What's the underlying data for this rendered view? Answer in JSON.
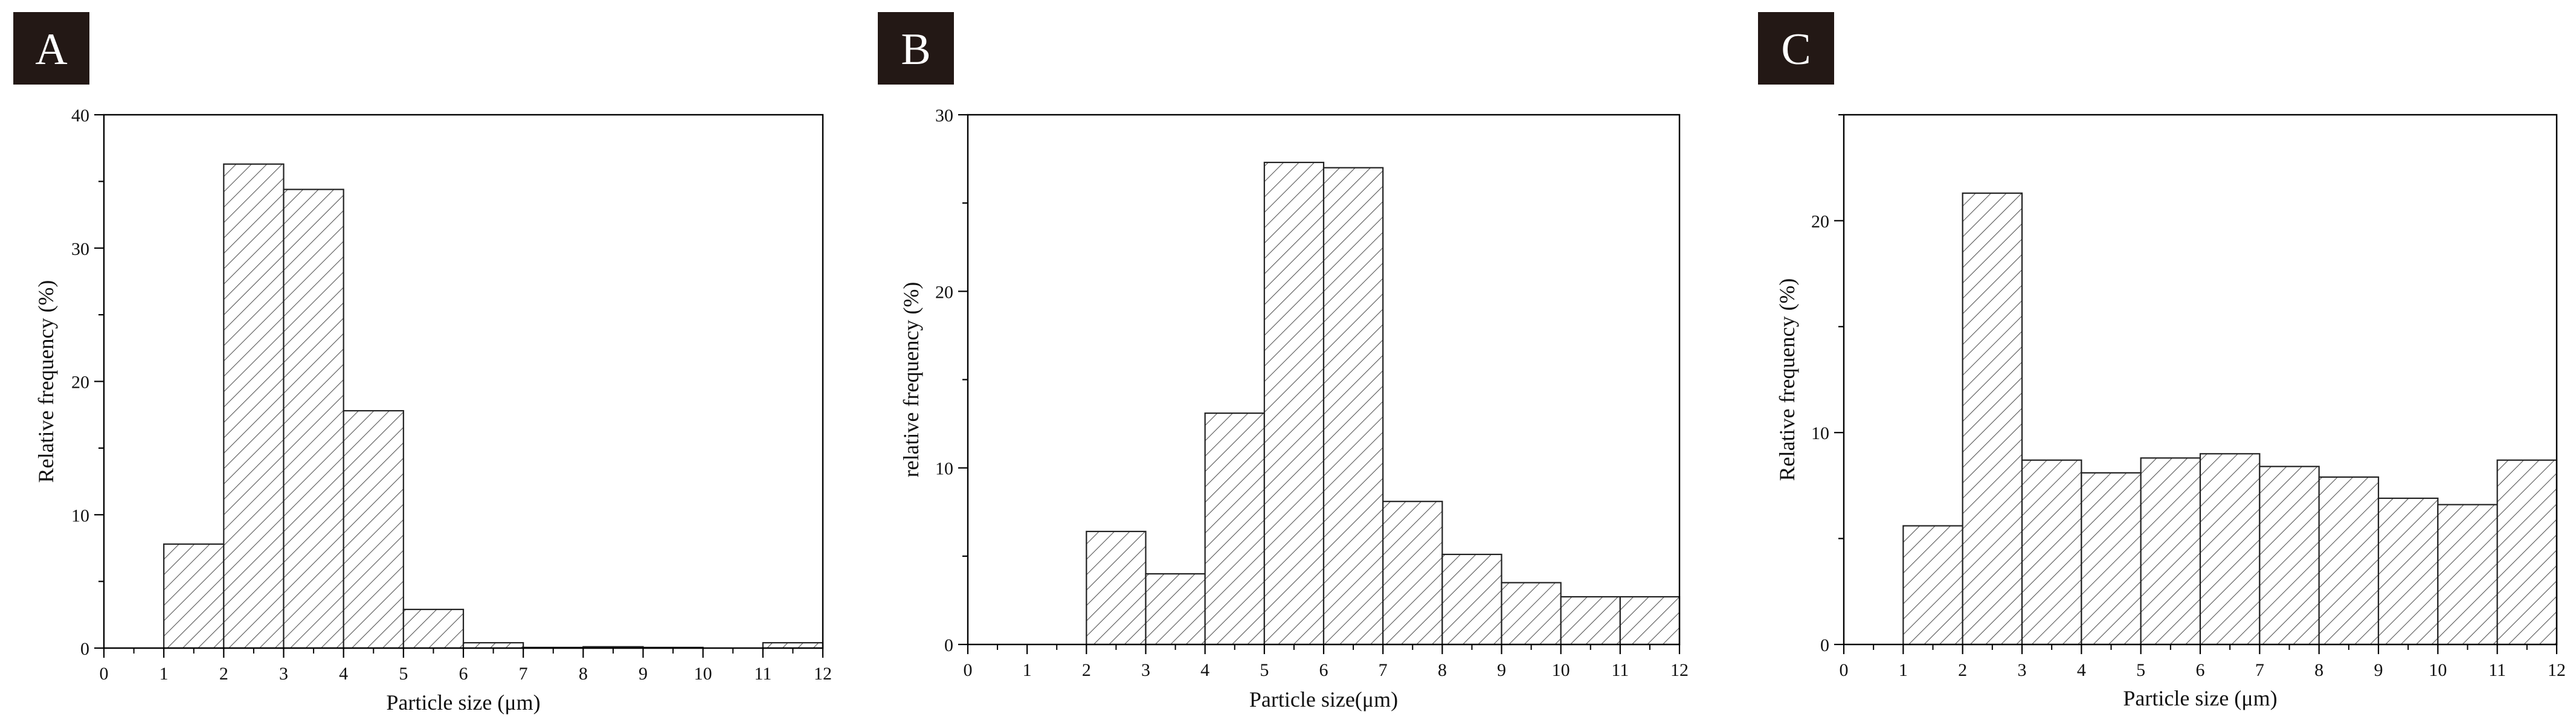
{
  "colors": {
    "panel_badge": "#231815",
    "bar_hatch": "#555555",
    "axis": "#000000"
  },
  "chart_data": [
    {
      "type": "bar",
      "panel_label": "A",
      "xlabel": "Particle size (μm)",
      "ylabel": "Relative frequency (%)",
      "xlim": [
        0,
        12
      ],
      "ylim": [
        0,
        40
      ],
      "xticks": [
        "0",
        "1",
        "2",
        "3",
        "4",
        "5",
        "6",
        "7",
        "8",
        "9",
        "10",
        "11",
        "12"
      ],
      "yticks": [
        "0",
        "10",
        "20",
        "30",
        "40"
      ],
      "bin_width": 1,
      "bins": [
        {
          "x0": 1,
          "x1": 2,
          "value": 7.8
        },
        {
          "x0": 2,
          "x1": 3,
          "value": 36.3
        },
        {
          "x0": 3,
          "x1": 4,
          "value": 34.4
        },
        {
          "x0": 4,
          "x1": 5,
          "value": 17.8
        },
        {
          "x0": 5,
          "x1": 6,
          "value": 2.9
        },
        {
          "x0": 6,
          "x1": 7,
          "value": 0.4
        },
        {
          "x0": 7,
          "x1": 8,
          "value": 0.05
        },
        {
          "x0": 8,
          "x1": 9,
          "value": 0.1
        },
        {
          "x0": 9,
          "x1": 10,
          "value": 0.05
        },
        {
          "x0": 11,
          "x1": 12,
          "value": 0.4
        }
      ]
    },
    {
      "type": "bar",
      "panel_label": "B",
      "xlabel": "Particle size(μm)",
      "ylabel": "relative frequency (%)",
      "xlim": [
        0,
        12
      ],
      "ylim": [
        0,
        30
      ],
      "xticks": [
        "0",
        "1",
        "2",
        "3",
        "4",
        "5",
        "6",
        "7",
        "8",
        "9",
        "10",
        "11",
        "12"
      ],
      "yticks": [
        "0",
        "10",
        "20",
        "30"
      ],
      "bin_width": 1,
      "bins": [
        {
          "x0": 2,
          "x1": 3,
          "value": 6.4
        },
        {
          "x0": 3,
          "x1": 4,
          "value": 4.0
        },
        {
          "x0": 4,
          "x1": 5,
          "value": 13.1
        },
        {
          "x0": 5,
          "x1": 6,
          "value": 27.3
        },
        {
          "x0": 6,
          "x1": 7,
          "value": 27.0
        },
        {
          "x0": 7,
          "x1": 8,
          "value": 8.1
        },
        {
          "x0": 8,
          "x1": 9,
          "value": 5.1
        },
        {
          "x0": 9,
          "x1": 10,
          "value": 3.5
        },
        {
          "x0": 10,
          "x1": 11,
          "value": 2.7
        },
        {
          "x0": 11,
          "x1": 12,
          "value": 2.7
        }
      ]
    },
    {
      "type": "bar",
      "panel_label": "C",
      "xlabel": "Particle size (μm)",
      "ylabel": "Relative frequency (%)",
      "xlim": [
        0,
        12
      ],
      "ylim": [
        0,
        25
      ],
      "xticks": [
        "0",
        "1",
        "2",
        "3",
        "4",
        "5",
        "6",
        "7",
        "8",
        "9",
        "10",
        "11",
        "12"
      ],
      "yticks": [
        "0",
        "10",
        "20"
      ],
      "bin_width": 1,
      "bins": [
        {
          "x0": 1,
          "x1": 2,
          "value": 5.6
        },
        {
          "x0": 2,
          "x1": 3,
          "value": 21.3
        },
        {
          "x0": 3,
          "x1": 4,
          "value": 8.7
        },
        {
          "x0": 4,
          "x1": 5,
          "value": 8.1
        },
        {
          "x0": 5,
          "x1": 6,
          "value": 8.8
        },
        {
          "x0": 6,
          "x1": 7,
          "value": 9.0
        },
        {
          "x0": 7,
          "x1": 8,
          "value": 8.4
        },
        {
          "x0": 8,
          "x1": 9,
          "value": 7.9
        },
        {
          "x0": 9,
          "x1": 10,
          "value": 6.9
        },
        {
          "x0": 10,
          "x1": 11,
          "value": 6.6
        },
        {
          "x0": 11,
          "x1": 12,
          "value": 8.7
        }
      ]
    }
  ]
}
